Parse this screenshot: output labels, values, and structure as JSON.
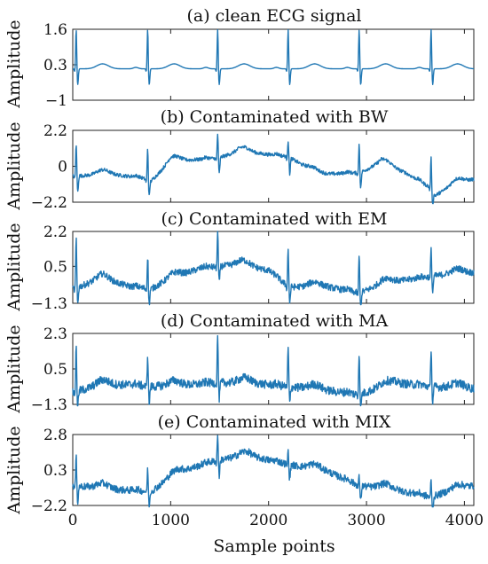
{
  "chart_data": [
    {
      "type": "line",
      "title": "(a) clean ECG signal",
      "ylabel": "Amplitude",
      "xlim": [
        0,
        4096
      ],
      "ylim": [
        -1,
        1.6
      ],
      "yticks": [
        "1.6",
        "0.3",
        "−1"
      ],
      "ytick_values": [
        1.6,
        0.3,
        -1
      ],
      "series": [
        {
          "beats_x": [
            35,
            765,
            1480,
            2200,
            2925,
            3660
          ],
          "peak_y": [
            1.6,
            1.6,
            1.6,
            1.6,
            1.6,
            1.6
          ],
          "baseline": [
            [
              0,
              0.15
            ],
            [
              4096,
              0.15
            ]
          ],
          "noise": 0.0
        }
      ]
    },
    {
      "type": "line",
      "title": "(b) Contaminated with BW",
      "ylabel": "Amplitude",
      "xlim": [
        0,
        4096
      ],
      "ylim": [
        -2.2,
        2.2
      ],
      "yticks": [
        "2.2",
        "0",
        "−2.2"
      ],
      "ytick_values": [
        2.2,
        0,
        -2.2
      ],
      "series": [
        {
          "beats_x": [
            35,
            765,
            1480,
            2200,
            2925,
            3660
          ],
          "peak_y": [
            1.4,
            1.1,
            2.0,
            1.6,
            1.4,
            0.5
          ],
          "baseline": [
            [
              0,
              -0.6
            ],
            [
              400,
              -0.5
            ],
            [
              700,
              -0.7
            ],
            [
              800,
              -0.9
            ],
            [
              1000,
              0.3
            ],
            [
              1480,
              0.5
            ],
            [
              1700,
              0.9
            ],
            [
              2200,
              0.6
            ],
            [
              2500,
              -0.5
            ],
            [
              2925,
              -0.4
            ],
            [
              3150,
              0.2
            ],
            [
              3400,
              -0.4
            ],
            [
              3650,
              -1.3
            ],
            [
              3700,
              -1.8
            ],
            [
              3900,
              -1.1
            ],
            [
              4096,
              -0.8
            ]
          ],
          "noise": 0.05
        }
      ]
    },
    {
      "type": "line",
      "title": "(c) Contaminated with EM",
      "ylabel": "Amplitude",
      "xlim": [
        0,
        4096
      ],
      "ylim": [
        -1.3,
        2.2
      ],
      "yticks": [
        "2.2",
        "0.5",
        "−1.3"
      ],
      "ytick_values": [
        2.2,
        0.5,
        -1.3
      ],
      "series": [
        {
          "beats_x": [
            35,
            765,
            1480,
            2200,
            2925,
            3660
          ],
          "peak_y": [
            1.8,
            1.0,
            2.2,
            1.4,
            1.0,
            1.3
          ],
          "baseline": [
            [
              0,
              -0.6
            ],
            [
              300,
              -0.1
            ],
            [
              600,
              -0.5
            ],
            [
              800,
              -0.6
            ],
            [
              1000,
              -0.1
            ],
            [
              1300,
              0.4
            ],
            [
              1700,
              0.6
            ],
            [
              2000,
              0.3
            ],
            [
              2200,
              -0.5
            ],
            [
              2600,
              -0.5
            ],
            [
              2925,
              -0.8
            ],
            [
              3200,
              -0.3
            ],
            [
              3500,
              -0.1
            ],
            [
              3800,
              0.1
            ],
            [
              4096,
              0.2
            ]
          ],
          "noise": 0.09
        }
      ]
    },
    {
      "type": "line",
      "title": "(d) Contaminated with MA",
      "ylabel": "Amplitude",
      "xlim": [
        0,
        4096
      ],
      "ylim": [
        -1.3,
        2.3
      ],
      "yticks": [
        "2.3",
        "0.5",
        "−1.3"
      ],
      "ytick_values": [
        2.3,
        0.5,
        -1.3
      ],
      "series": [
        {
          "beats_x": [
            35,
            765,
            1480,
            2200,
            2925,
            3660
          ],
          "peak_y": [
            1.6,
            1.2,
            2.2,
            1.6,
            1.4,
            1.6
          ],
          "baseline": [
            [
              0,
              -0.7
            ],
            [
              300,
              -0.3
            ],
            [
              600,
              -0.3
            ],
            [
              800,
              -0.4
            ],
            [
              1200,
              -0.3
            ],
            [
              1480,
              -0.2
            ],
            [
              1800,
              -0.2
            ],
            [
              2200,
              -0.4
            ],
            [
              2600,
              -0.6
            ],
            [
              2925,
              -0.8
            ],
            [
              3300,
              -0.2
            ],
            [
              3660,
              -0.4
            ],
            [
              4096,
              -0.5
            ]
          ],
          "noise": 0.12
        }
      ]
    },
    {
      "type": "line",
      "title": "(e) Contaminated with MIX",
      "ylabel": "Amplitude",
      "xlim": [
        0,
        4096
      ],
      "ylim": [
        -2.2,
        2.8
      ],
      "yticks": [
        "2.8",
        "0.3",
        "−2.2"
      ],
      "ytick_values": [
        2.8,
        0.3,
        -2.2
      ],
      "xticks": [
        "0",
        "1000",
        "2000",
        "3000",
        "4000"
      ],
      "xtick_values": [
        0,
        1000,
        2000,
        3000,
        4000
      ],
      "xlabel": "Sample points",
      "series": [
        {
          "beats_x": [
            35,
            765,
            1480,
            2200,
            2925,
            3660
          ],
          "peak_y": [
            1.2,
            0.4,
            2.8,
            1.6,
            -0.2,
            -0.4
          ],
          "baseline": [
            [
              0,
              -0.8
            ],
            [
              500,
              -1.1
            ],
            [
              800,
              -1.2
            ],
            [
              1100,
              0.2
            ],
            [
              1480,
              1.0
            ],
            [
              1800,
              1.3
            ],
            [
              2200,
              0.7
            ],
            [
              2600,
              0.2
            ],
            [
              2925,
              -0.8
            ],
            [
              3300,
              -1.1
            ],
            [
              3660,
              -1.6
            ],
            [
              3800,
              -1.3
            ],
            [
              4096,
              -0.8
            ]
          ],
          "noise": 0.1
        }
      ]
    }
  ]
}
